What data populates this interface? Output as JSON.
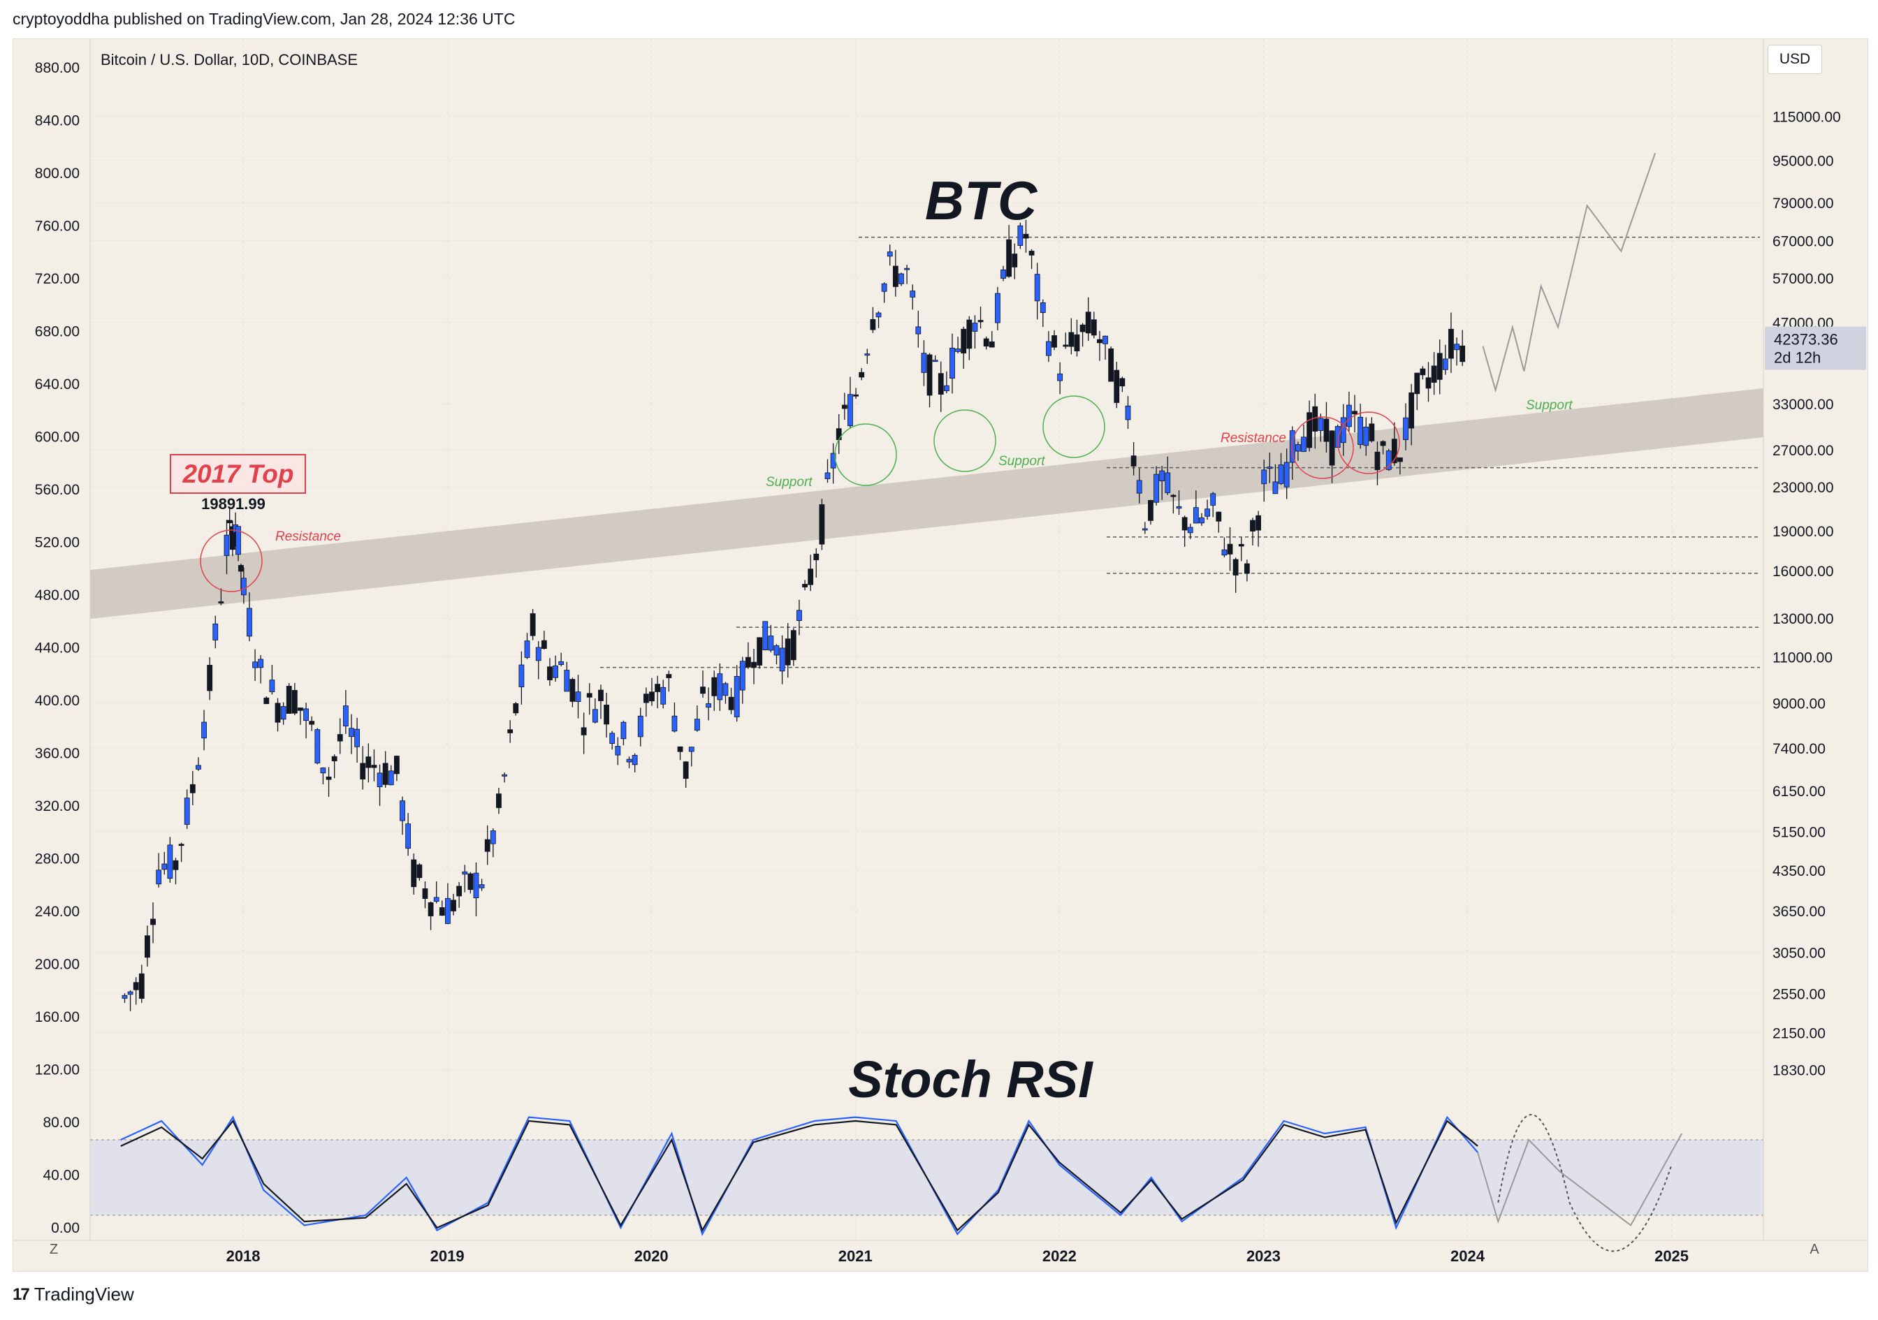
{
  "header": {
    "text": "cryptoyoddha published on TradingView.com, Jan 28, 2024 12:36 UTC"
  },
  "footer": {
    "brand": "TradingView",
    "logo_icon": "tradingview-logo-icon"
  },
  "toolbar": {
    "currency": "USD",
    "left_button": "Z",
    "right_button": "A"
  },
  "chart_data": {
    "type": "candlestick",
    "symbol_label": "Bitcoin / U.S. Dollar, 10D, COINBASE",
    "annotations": {
      "title_main": "BTC",
      "title_osc": "Stoch RSI",
      "top_label": "2017 Top",
      "top_value": "19891.99",
      "resistance": "Resistance",
      "support": "Support"
    },
    "price_marker": {
      "value": "42373.36",
      "countdown": "2d 12h"
    },
    "left_axis": {
      "ticks": [
        "880.00",
        "840.00",
        "800.00",
        "760.00",
        "720.00",
        "680.00",
        "640.00",
        "600.00",
        "560.00",
        "520.00",
        "480.00",
        "440.00",
        "400.00",
        "360.00",
        "320.00",
        "280.00",
        "240.00",
        "200.00",
        "160.00",
        "120.00",
        "80.00",
        "40.00",
        "0.00"
      ]
    },
    "right_axis": {
      "scale": "log",
      "ticks": [
        115000,
        95000,
        79000,
        67000,
        57000,
        47000,
        33000,
        27000,
        23000,
        19000,
        16000,
        13000,
        11000,
        9000,
        7400,
        6150,
        5150,
        4350,
        3650,
        3050,
        2550,
        2150,
        1830
      ],
      "tick_labels": [
        "115000.00",
        "95000.00",
        "79000.00",
        "67000.00",
        "57000.00",
        "47000.00",
        "33000.00",
        "27000.00",
        "23000.00",
        "19000.00",
        "16000.00",
        "13000.00",
        "11000.00",
        "9000.00",
        "7400.00",
        "6150.00",
        "5150.00",
        "4350.00",
        "3650.00",
        "3050.00",
        "2550.00",
        "2150.00",
        "1830.00"
      ]
    },
    "x_axis": {
      "ticks": [
        "2018",
        "2019",
        "2020",
        "2021",
        "2022",
        "2023",
        "2024",
        "2025"
      ]
    },
    "horizontal_levels": [
      68000,
      25000,
      18500,
      15800,
      12500,
      10500
    ],
    "price_series": [
      [
        "2017-06-01",
        2400,
        2500
      ],
      [
        "2017-07-01",
        2500,
        2700
      ],
      [
        "2017-08-01",
        4000,
        4400
      ],
      [
        "2017-09-01",
        4300,
        4500
      ],
      [
        "2017-10-01",
        5000,
        6200
      ],
      [
        "2017-11-01",
        7500,
        9800
      ],
      [
        "2017-12-01",
        14500,
        17800
      ],
      [
        "2017-12-17",
        19800,
        19891.99
      ],
      [
        "2018-01-01",
        13500,
        14500
      ],
      [
        "2018-02-01",
        9500,
        10200
      ],
      [
        "2018-03-01",
        7500,
        9000
      ],
      [
        "2018-04-01",
        8800,
        9300
      ],
      [
        "2018-05-01",
        7500,
        8000
      ],
      [
        "2018-06-01",
        6200,
        6600
      ],
      [
        "2018-07-01",
        7700,
        8200
      ],
      [
        "2018-08-01",
        6500,
        7000
      ],
      [
        "2018-09-01",
        6600,
        6800
      ],
      [
        "2018-10-01",
        6400,
        6600
      ],
      [
        "2018-11-01",
        4100,
        4300
      ],
      [
        "2018-12-01",
        3700,
        3900
      ],
      [
        "2019-01-01",
        3500,
        3700
      ],
      [
        "2019-02-01",
        3800,
        4000
      ],
      [
        "2019-03-01",
        4100,
        4200
      ],
      [
        "2019-04-01",
        5300,
        5600
      ],
      [
        "2019-05-01",
        8500,
        8800
      ],
      [
        "2019-06-01",
        10800,
        12400
      ],
      [
        "2019-07-01",
        10000,
        10600
      ],
      [
        "2019-08-01",
        9600,
        10400
      ],
      [
        "2019-09-01",
        8300,
        8600
      ],
      [
        "2019-10-01",
        9100,
        9300
      ],
      [
        "2019-11-01",
        7500,
        7800
      ],
      [
        "2019-12-01",
        7200,
        7400
      ],
      [
        "2020-01-01",
        9300,
        9500
      ],
      [
        "2020-02-01",
        9000,
        9700
      ],
      [
        "2020-03-01",
        6400,
        6700
      ],
      [
        "2020-04-01",
        8700,
        8900
      ],
      [
        "2020-05-01",
        9500,
        9700
      ],
      [
        "2020-06-01",
        9100,
        9300
      ],
      [
        "2020-07-01",
        11300,
        11500
      ],
      [
        "2020-08-01",
        11600,
        11900
      ],
      [
        "2020-09-01",
        10700,
        11000
      ],
      [
        "2020-10-01",
        13500,
        13900
      ],
      [
        "2020-11-01",
        18500,
        19700
      ],
      [
        "2020-12-01",
        28900,
        29300
      ],
      [
        "2021-01-01",
        33000,
        34500
      ],
      [
        "2021-02-01",
        45000,
        49000
      ],
      [
        "2021-03-01",
        58500,
        59000
      ],
      [
        "2021-04-01",
        56000,
        57800
      ],
      [
        "2021-05-01",
        37000,
        38500
      ],
      [
        "2021-06-01",
        35000,
        35800
      ],
      [
        "2021-07-01",
        41000,
        41600
      ],
      [
        "2021-08-01",
        47000,
        48500
      ],
      [
        "2021-09-01",
        43500,
        44000
      ],
      [
        "2021-10-01",
        61000,
        62000
      ],
      [
        "2021-11-01",
        57000,
        68789
      ],
      [
        "2021-12-01",
        46000,
        47500
      ],
      [
        "2022-01-01",
        38500,
        39000
      ],
      [
        "2022-02-01",
        43000,
        44000
      ],
      [
        "2022-03-01",
        45500,
        46500
      ],
      [
        "2022-04-01",
        38000,
        38600
      ],
      [
        "2022-05-01",
        31700,
        32000
      ],
      [
        "2022-06-01",
        19800,
        20100
      ],
      [
        "2022-07-01",
        23300,
        23700
      ],
      [
        "2022-08-01",
        20000,
        20300
      ],
      [
        "2022-09-01",
        19400,
        19600
      ],
      [
        "2022-10-01",
        20500,
        20700
      ],
      [
        "2022-11-01",
        17100,
        17200
      ],
      [
        "2022-12-01",
        16500,
        16600
      ],
      [
        "2023-01-01",
        23100,
        23400
      ],
      [
        "2023-02-01",
        23100,
        23500
      ],
      [
        "2023-03-01",
        28500,
        29100
      ],
      [
        "2023-04-01",
        29200,
        30000
      ],
      [
        "2023-05-01",
        27200,
        27600
      ],
      [
        "2023-06-01",
        30400,
        30700
      ],
      [
        "2023-07-01",
        29200,
        29400
      ],
      [
        "2023-08-01",
        25900,
        26100
      ],
      [
        "2023-09-01",
        26900,
        27100
      ],
      [
        "2023-10-01",
        34500,
        34700
      ],
      [
        "2023-11-01",
        37700,
        38000
      ],
      [
        "2023-12-01",
        42200,
        42500
      ],
      [
        "2024-01-01",
        42300,
        42373.36
      ]
    ],
    "projection": [
      [
        "2024-01-28",
        42373
      ],
      [
        "2024-02-20",
        35000
      ],
      [
        "2024-03-20",
        46000
      ],
      [
        "2024-04-10",
        38000
      ],
      [
        "2024-05-10",
        55000
      ],
      [
        "2024-06-10",
        46000
      ],
      [
        "2024-08-01",
        78000
      ],
      [
        "2024-10-01",
        64000
      ],
      [
        "2024-12-01",
        98000
      ]
    ],
    "stoch_rsi": {
      "ylim": [
        0,
        100
      ],
      "bands": [
        20,
        80
      ],
      "series": [
        {
          "color": "#2962ff",
          "values": [
            [
              2017.4,
              80
            ],
            [
              2017.6,
              95
            ],
            [
              2017.8,
              60
            ],
            [
              2017.95,
              98
            ],
            [
              2018.1,
              40
            ],
            [
              2018.3,
              12
            ],
            [
              2018.6,
              20
            ],
            [
              2018.8,
              50
            ],
            [
              2018.95,
              8
            ],
            [
              2019.2,
              30
            ],
            [
              2019.4,
              98
            ],
            [
              2019.6,
              95
            ],
            [
              2019.85,
              10
            ],
            [
              2020.1,
              85
            ],
            [
              2020.25,
              5
            ],
            [
              2020.5,
              80
            ],
            [
              2020.8,
              95
            ],
            [
              2021.0,
              98
            ],
            [
              2021.2,
              95
            ],
            [
              2021.5,
              5
            ],
            [
              2021.7,
              40
            ],
            [
              2021.85,
              95
            ],
            [
              2022.0,
              60
            ],
            [
              2022.3,
              20
            ],
            [
              2022.45,
              50
            ],
            [
              2022.6,
              15
            ],
            [
              2022.9,
              50
            ],
            [
              2023.1,
              95
            ],
            [
              2023.3,
              85
            ],
            [
              2023.5,
              90
            ],
            [
              2023.65,
              10
            ],
            [
              2023.9,
              98
            ],
            [
              2024.05,
              70
            ]
          ]
        },
        {
          "color": "#131722",
          "values": [
            [
              2017.4,
              75
            ],
            [
              2017.6,
              90
            ],
            [
              2017.8,
              65
            ],
            [
              2017.95,
              95
            ],
            [
              2018.1,
              45
            ],
            [
              2018.3,
              15
            ],
            [
              2018.6,
              18
            ],
            [
              2018.8,
              45
            ],
            [
              2018.95,
              10
            ],
            [
              2019.2,
              28
            ],
            [
              2019.4,
              95
            ],
            [
              2019.6,
              92
            ],
            [
              2019.85,
              12
            ],
            [
              2020.1,
              80
            ],
            [
              2020.25,
              8
            ],
            [
              2020.5,
              78
            ],
            [
              2020.8,
              92
            ],
            [
              2021.0,
              95
            ],
            [
              2021.2,
              92
            ],
            [
              2021.5,
              8
            ],
            [
              2021.7,
              38
            ],
            [
              2021.85,
              92
            ],
            [
              2022.0,
              62
            ],
            [
              2022.3,
              22
            ],
            [
              2022.45,
              48
            ],
            [
              2022.6,
              17
            ],
            [
              2022.9,
              48
            ],
            [
              2023.1,
              92
            ],
            [
              2023.3,
              82
            ],
            [
              2023.5,
              88
            ],
            [
              2023.65,
              14
            ],
            [
              2023.9,
              95
            ],
            [
              2024.05,
              75
            ]
          ]
        }
      ]
    }
  }
}
